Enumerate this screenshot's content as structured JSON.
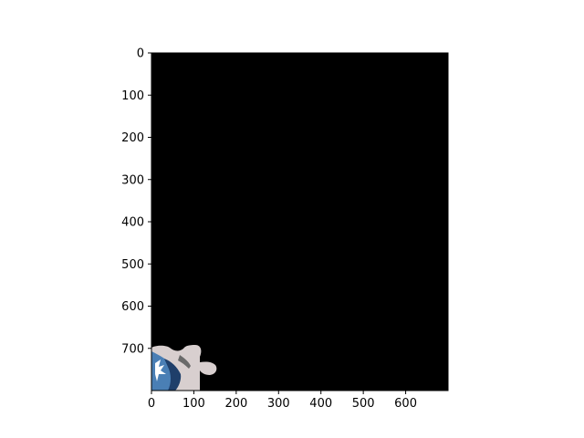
{
  "chart_data": {
    "type": "image",
    "title": "",
    "xlabel": "",
    "ylabel": "",
    "xlim": [
      0,
      700
    ],
    "ylim": [
      800,
      0
    ],
    "x_ticks": [
      0,
      100,
      200,
      300,
      400,
      500,
      600
    ],
    "y_ticks": [
      0,
      100,
      200,
      300,
      400,
      500,
      600,
      700
    ],
    "grid": false,
    "background_color": "#000000",
    "image_content": "puzzle-piece",
    "puzzle_piece": {
      "x_range": [
        0,
        150
      ],
      "y_range": [
        695,
        800
      ],
      "colors": [
        "#d8cfcf",
        "#4a7fb5",
        "#1f3f6a",
        "#ffffff"
      ]
    }
  }
}
